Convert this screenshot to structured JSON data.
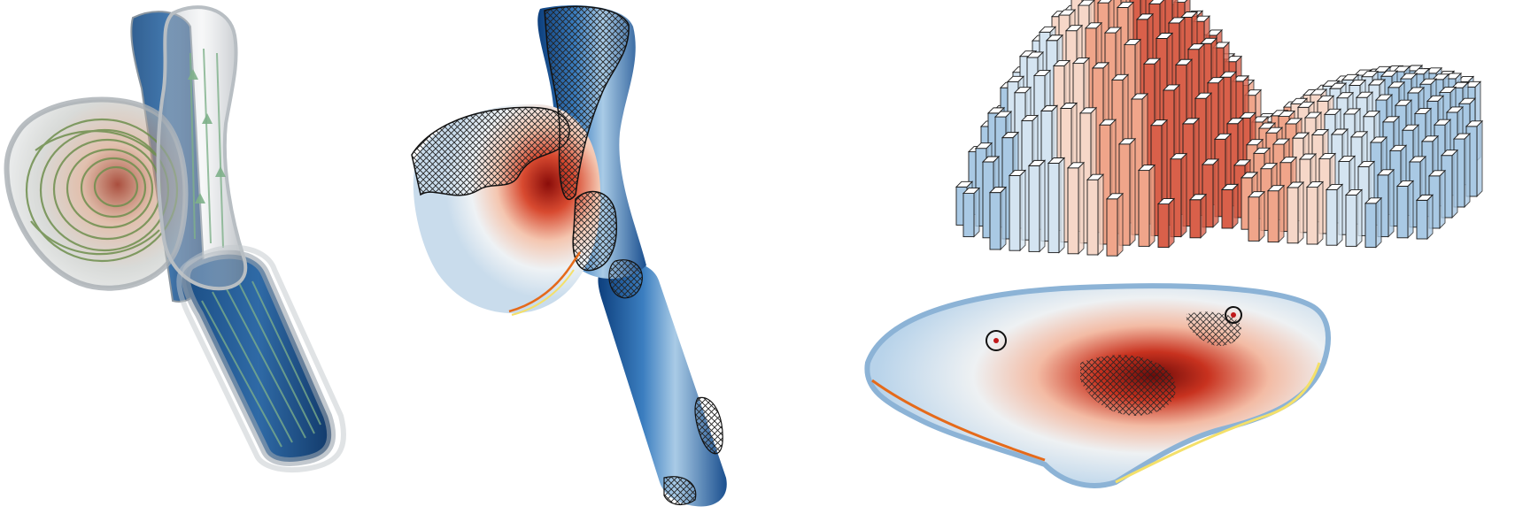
{
  "figure": {
    "panels": [
      {
        "id": "a",
        "content": "translucent-vessel-with-streamlines"
      },
      {
        "id": "b",
        "content": "vessel-surface-colormap-with-hatching"
      },
      {
        "id": "c",
        "content": "flattened-surface-with-3d-bar-glyphs"
      }
    ],
    "colors": {
      "vessel_blue_dark": "#0b3f7a",
      "vessel_blue_mid": "#3d7fbf",
      "vessel_blue_light": "#c7ddee",
      "neutral": "#f2f2f2",
      "hot_light": "#f6c3a8",
      "hot_mid": "#e05a3a",
      "hot_dark": "#8a0d0a",
      "streamline_green": "#6f8f4e",
      "outline_orange": "#e56a1a",
      "outline_yellow": "#f4e06a"
    }
  }
}
